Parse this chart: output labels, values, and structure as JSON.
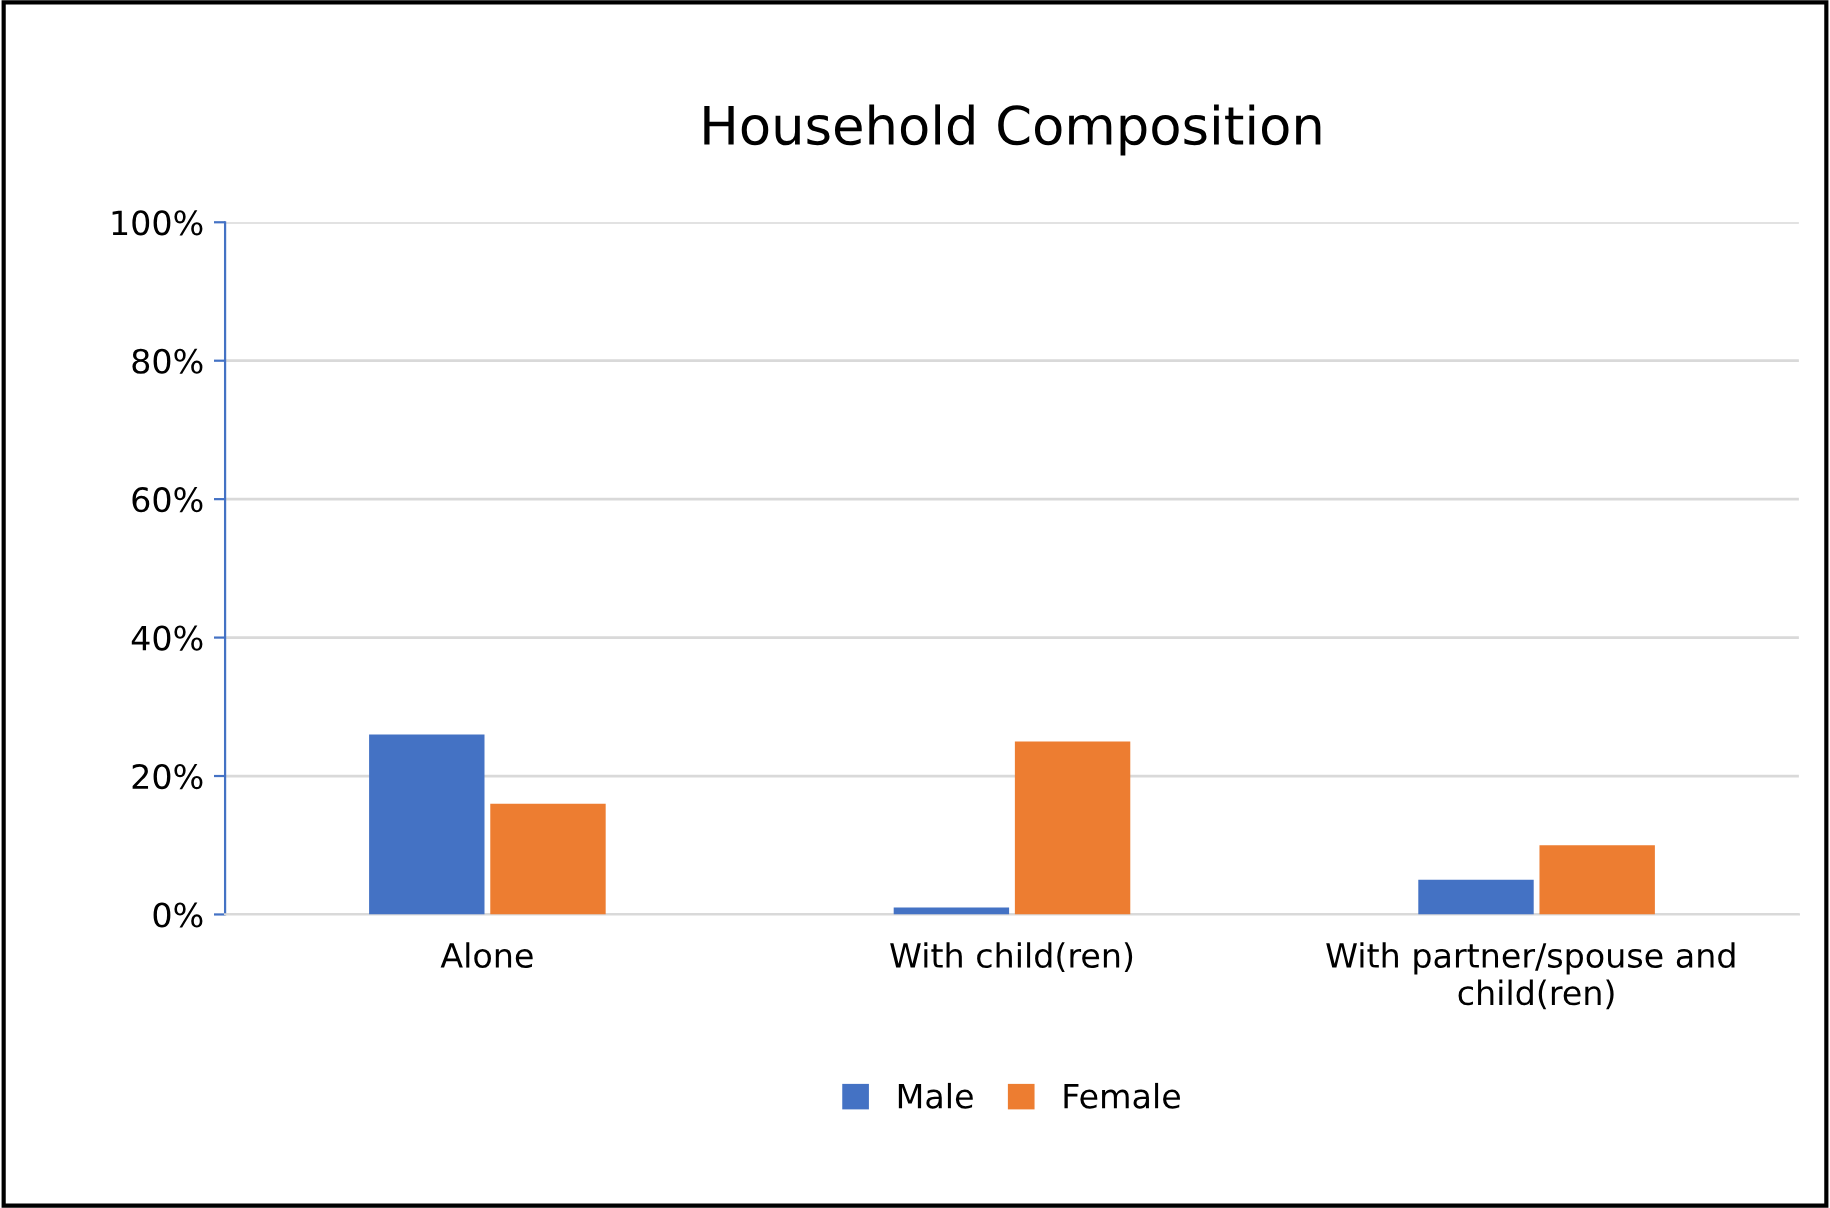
{
  "chart_data": {
    "type": "bar",
    "title": "Household Composition",
    "categories": [
      "Alone",
      "With child(ren)",
      "With partner/spouse and child(ren)"
    ],
    "series": [
      {
        "name": "Male",
        "color": "#4472c4",
        "values": [
          26,
          1,
          5
        ]
      },
      {
        "name": "Female",
        "color": "#ed7d31",
        "values": [
          16,
          25,
          10
        ]
      }
    ],
    "ylim": [
      0,
      100
    ],
    "yticks": [
      {
        "value": 0,
        "label": "0%"
      },
      {
        "value": 20,
        "label": "20%"
      },
      {
        "value": 40,
        "label": "40%"
      },
      {
        "value": 60,
        "label": "60%"
      },
      {
        "value": 80,
        "label": "80%"
      },
      {
        "value": 100,
        "label": "100%"
      }
    ],
    "grid": "y",
    "legend": "bottom"
  }
}
